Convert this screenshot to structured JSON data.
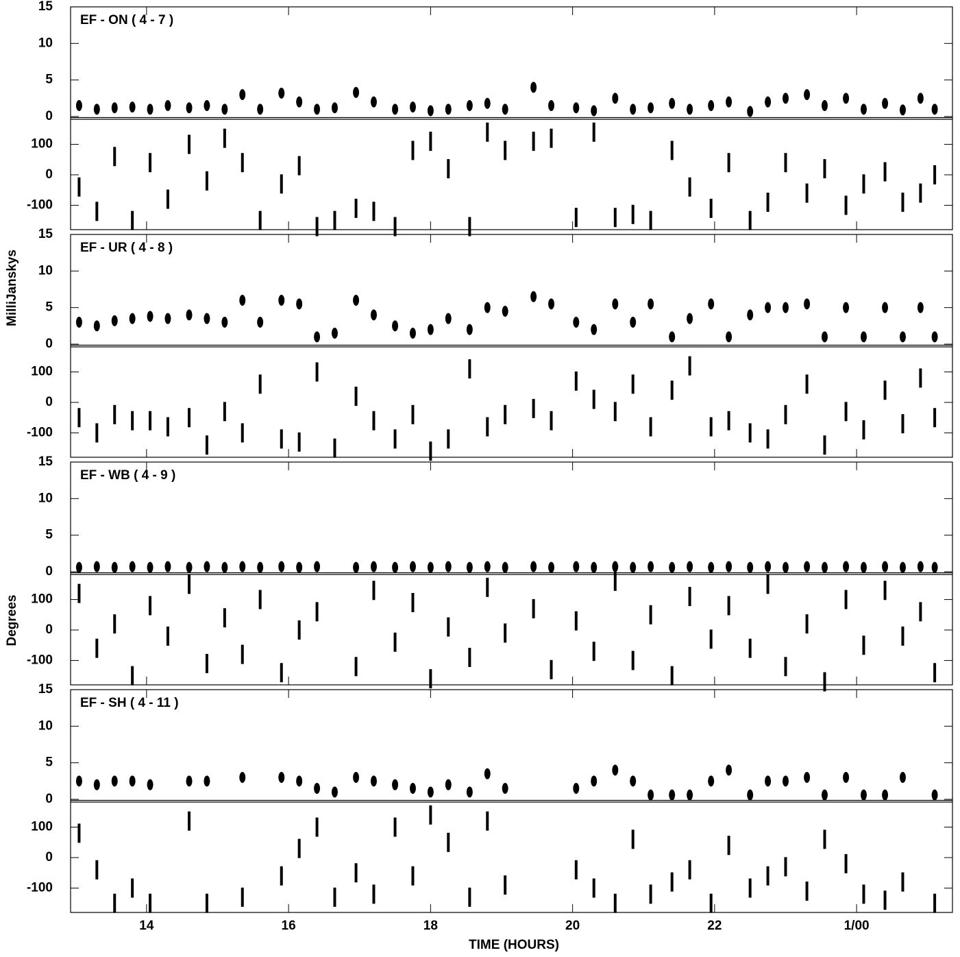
{
  "chart_data": [
    {
      "type": "scatter",
      "title": "EF - ON ( 4 - 7 )",
      "ylabel": "MilliJanskys",
      "xlim": [
        12.93,
        25.35
      ],
      "xticks": [
        14,
        16,
        18,
        20,
        22,
        {
          "value": 24,
          "label": "1/00"
        }
      ],
      "ylim": [
        0,
        15
      ],
      "yticks": [
        0,
        5,
        10,
        15
      ],
      "y2lim": [
        -180,
        180
      ],
      "y2ticks": [
        -100,
        0,
        100
      ],
      "x": [
        13.05,
        13.3,
        13.55,
        13.8,
        14.05,
        14.3,
        14.6,
        14.85,
        15.1,
        15.35,
        15.6,
        15.9,
        16.15,
        16.4,
        16.65,
        16.95,
        17.2,
        17.5,
        17.75,
        18.0,
        18.25,
        18.55,
        18.8,
        19.05,
        19.45,
        19.7,
        20.05,
        20.3,
        20.6,
        20.85,
        21.1,
        21.4,
        21.65,
        21.95,
        22.2,
        22.5,
        22.75,
        23.0,
        23.3,
        23.55,
        23.85,
        24.1,
        24.4,
        24.65,
        24.9,
        25.1
      ],
      "series": [
        {
          "color": "#000000",
          "values": [
            1.5,
            1.0,
            1.2,
            1.3,
            1.0,
            1.5,
            1.2,
            1.5,
            1.0,
            3.0,
            1.0,
            3.2,
            2.0,
            1.0,
            1.2,
            3.3,
            2.0,
            1.0,
            1.3,
            0.8,
            1.0,
            1.5,
            1.8,
            1.0,
            4.0,
            1.5,
            1.2,
            0.8,
            2.5,
            1.0,
            1.2,
            1.8,
            1.0,
            1.5,
            2.0,
            0.7,
            2.0,
            2.5,
            3.0,
            1.5,
            2.5,
            1.0,
            1.8,
            0.9,
            2.5,
            1.0
          ]
        },
        {
          "color": "#000000",
          "axis": "y2",
          "values": [
            -40,
            -120,
            60,
            -150,
            40,
            -80,
            100,
            -20,
            120,
            40,
            -150,
            -30,
            30,
            -170,
            -150,
            -110,
            -120,
            -170,
            80,
            110,
            20,
            -170,
            140,
            80,
            110,
            120,
            -140,
            140,
            -140,
            -130,
            -150,
            80,
            -40,
            -110,
            40,
            -150,
            -90,
            40,
            -60,
            20,
            -100,
            -30,
            10,
            -90,
            -60,
            0
          ]
        }
      ]
    },
    {
      "type": "scatter",
      "title": "EF - UR ( 4 - 8 )",
      "xlim": [
        12.93,
        25.35
      ],
      "xticks": [
        14,
        16,
        18,
        20,
        22,
        {
          "value": 24,
          "label": "1/00"
        }
      ],
      "ylim": [
        0,
        15
      ],
      "yticks": [
        0,
        5,
        10,
        15
      ],
      "y2lim": [
        -180,
        180
      ],
      "y2ticks": [
        -100,
        0,
        100
      ],
      "x": [
        13.05,
        13.3,
        13.55,
        13.8,
        14.05,
        14.3,
        14.6,
        14.85,
        15.1,
        15.35,
        15.6,
        15.9,
        16.15,
        16.4,
        16.65,
        16.95,
        17.2,
        17.5,
        17.75,
        18.0,
        18.25,
        18.55,
        18.8,
        19.05,
        19.45,
        19.7,
        20.05,
        20.3,
        20.6,
        20.85,
        21.1,
        21.4,
        21.65,
        21.95,
        22.2,
        22.5,
        22.75,
        23.0,
        23.3,
        23.55,
        23.85,
        24.1,
        24.4,
        24.65,
        24.9,
        25.1
      ],
      "series": [
        {
          "color": "#000000",
          "values": [
            3.0,
            2.5,
            3.2,
            3.5,
            3.8,
            3.5,
            4.0,
            3.5,
            3.0,
            6.0,
            3.0,
            6.0,
            5.5,
            1.0,
            1.5,
            6.0,
            4.0,
            2.5,
            1.5,
            2.0,
            3.5,
            2.0,
            5.0,
            4.5,
            6.5,
            5.5,
            3.0,
            2.0,
            5.5,
            3.0,
            5.5,
            1.0,
            3.5,
            5.5,
            1.0,
            4.0,
            5.0,
            5.0,
            5.5,
            1.0,
            5.0,
            1.0,
            5.0,
            1.0,
            5.0,
            1.0
          ]
        },
        {
          "color": "#000000",
          "axis": "y2",
          "values": [
            -50,
            -100,
            -40,
            -60,
            -60,
            -80,
            -50,
            -140,
            -30,
            -100,
            60,
            -120,
            -130,
            100,
            -150,
            20,
            -60,
            -120,
            -40,
            -160,
            -120,
            110,
            -80,
            -40,
            -20,
            -60,
            70,
            10,
            -30,
            60,
            -80,
            40,
            120,
            -80,
            -60,
            -100,
            -120,
            -40,
            60,
            -140,
            -30,
            -90,
            40,
            -70,
            80,
            -50
          ]
        }
      ]
    },
    {
      "type": "scatter",
      "title": "EF - WB ( 4 - 9 )",
      "ylabel": "Degrees",
      "xlim": [
        12.93,
        25.35
      ],
      "xticks": [
        14,
        16,
        18,
        20,
        22,
        {
          "value": 24,
          "label": "1/00"
        }
      ],
      "ylim": [
        0,
        15
      ],
      "yticks": [
        0,
        5,
        10,
        15
      ],
      "y2lim": [
        -180,
        180
      ],
      "y2ticks": [
        -100,
        0,
        100
      ],
      "x": [
        13.05,
        13.3,
        13.55,
        13.8,
        14.05,
        14.3,
        14.6,
        14.85,
        15.1,
        15.35,
        15.6,
        15.9,
        16.15,
        16.4,
        16.95,
        17.2,
        17.5,
        17.75,
        18.0,
        18.25,
        18.55,
        18.8,
        19.05,
        19.45,
        19.7,
        20.05,
        20.3,
        20.6,
        20.85,
        21.1,
        21.4,
        21.65,
        21.95,
        22.2,
        22.5,
        22.75,
        23.0,
        23.3,
        23.55,
        23.85,
        24.1,
        24.4,
        24.65,
        24.9,
        25.1
      ],
      "series": [
        {
          "color": "#000000",
          "values": [
            0.6,
            0.7,
            0.6,
            0.7,
            0.6,
            0.7,
            0.6,
            0.7,
            0.6,
            0.7,
            0.6,
            0.7,
            0.6,
            0.7,
            0.6,
            0.7,
            0.6,
            0.7,
            0.6,
            0.7,
            0.6,
            0.7,
            0.6,
            0.7,
            0.6,
            0.7,
            0.6,
            0.7,
            0.6,
            0.7,
            0.6,
            0.7,
            0.6,
            0.7,
            0.6,
            0.7,
            0.6,
            0.7,
            0.6,
            0.7,
            0.6,
            0.7,
            0.6,
            0.7,
            0.6
          ]
        },
        {
          "color": "#000000",
          "axis": "y2",
          "values": [
            120,
            -60,
            20,
            -150,
            80,
            -20,
            150,
            -110,
            40,
            -80,
            100,
            -140,
            0,
            60,
            -120,
            130,
            -40,
            90,
            -160,
            10,
            -90,
            140,
            -10,
            70,
            -130,
            30,
            -70,
            160,
            -100,
            50,
            -150,
            110,
            -30,
            80,
            -60,
            150,
            -120,
            20,
            -170,
            100,
            -50,
            130,
            -20,
            60,
            -140
          ]
        }
      ]
    },
    {
      "type": "scatter",
      "title": "EF - SH ( 4 - 11 )",
      "xlabel": "TIME (HOURS)",
      "xlim": [
        12.93,
        25.35
      ],
      "xticks": [
        14,
        16,
        18,
        20,
        22,
        {
          "value": 24,
          "label": "1/00"
        }
      ],
      "ylim": [
        0,
        15
      ],
      "yticks": [
        0,
        5,
        10,
        15
      ],
      "y2lim": [
        -180,
        180
      ],
      "y2ticks": [
        -100,
        0,
        100
      ],
      "x": [
        13.05,
        13.3,
        13.55,
        13.8,
        14.05,
        14.6,
        14.85,
        15.35,
        15.9,
        16.15,
        16.4,
        16.65,
        16.95,
        17.2,
        17.5,
        17.75,
        18.0,
        18.25,
        18.55,
        18.8,
        19.05,
        20.05,
        20.3,
        20.6,
        20.85,
        21.1,
        21.4,
        21.65,
        21.95,
        22.2,
        22.5,
        22.75,
        23.0,
        23.3,
        23.55,
        23.85,
        24.1,
        24.4,
        24.65,
        25.1
      ],
      "series": [
        {
          "color": "#000000",
          "values": [
            2.5,
            2.0,
            2.5,
            2.5,
            2.0,
            2.5,
            2.5,
            3.0,
            3.0,
            2.5,
            1.5,
            1.0,
            3.0,
            2.5,
            2.0,
            1.5,
            1.0,
            2.0,
            1.0,
            3.5,
            1.5,
            1.5,
            2.5,
            4.0,
            2.5,
            0.6,
            0.6,
            0.6,
            2.5,
            4.0,
            0.6,
            2.5,
            2.5,
            3.0,
            0.6,
            3.0,
            0.6,
            0.6,
            3.0,
            0.6
          ]
        },
        {
          "color": "#000000",
          "axis": "y2",
          "values": [
            80,
            -40,
            -150,
            -100,
            -150,
            120,
            -150,
            -130,
            -60,
            30,
            100,
            -130,
            -50,
            -120,
            100,
            -60,
            140,
            50,
            -130,
            120,
            -90,
            -40,
            -100,
            -150,
            60,
            -120,
            -80,
            -40,
            -150,
            40,
            -100,
            -60,
            -30,
            -110,
            60,
            -20,
            -120,
            -140,
            -80,
            -150
          ]
        }
      ]
    }
  ]
}
